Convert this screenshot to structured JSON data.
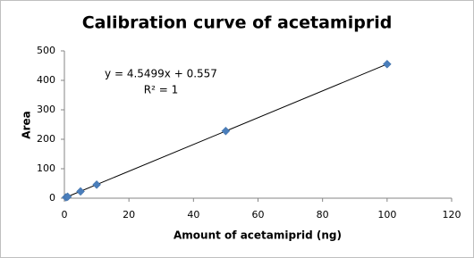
{
  "chart_data": {
    "type": "scatter",
    "title": "Calibration curve of acetamiprid",
    "x_label": "Amount of acetamiprid (ng)",
    "y_label": "Area",
    "annotations": [
      "y = 4.5499x + 0.557",
      "R² = 1"
    ],
    "series": [
      {
        "name": "Area",
        "color": "#4a7ebb",
        "x": [
          0.5,
          1,
          5,
          10,
          50,
          100
        ],
        "values": [
          3,
          5,
          23,
          46,
          228,
          455
        ]
      }
    ],
    "trendline_color": "#000000",
    "xlim": [
      0,
      120
    ],
    "xticks": [
      0,
      20,
      40,
      60,
      80,
      100,
      120
    ],
    "ylim": [
      0,
      500
    ],
    "yticks": [
      0,
      100,
      200,
      300,
      400,
      500
    ],
    "grid": false
  }
}
